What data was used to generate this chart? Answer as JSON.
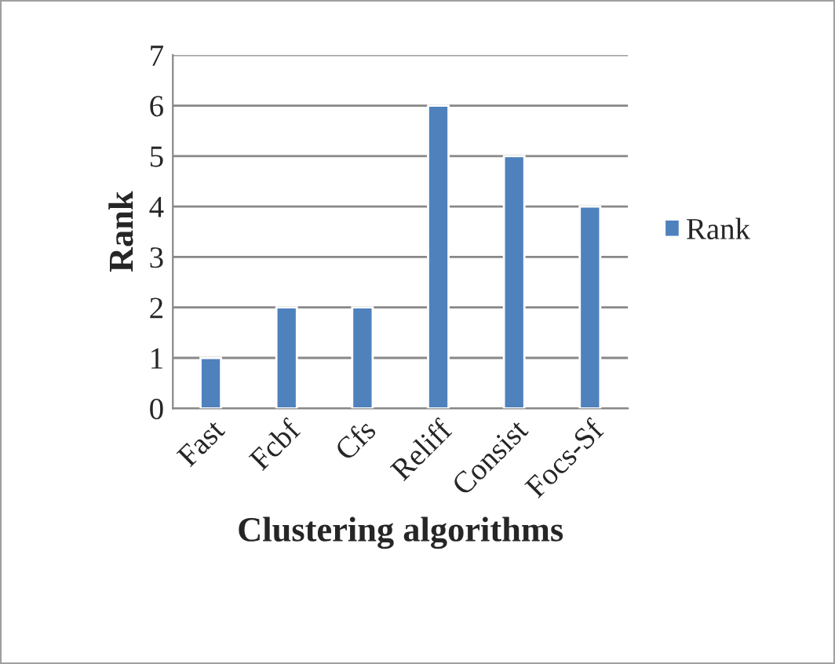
{
  "chart_data": {
    "type": "bar",
    "xlabel": "Clustering algorithms",
    "ylabel": "Rank",
    "categories": [
      "Fast",
      "Fcbf",
      "Cfs",
      "Reliff",
      "Consist",
      "Focs-Sf"
    ],
    "series": [
      {
        "name": "Rank",
        "color": "#4f81bd",
        "values": [
          1,
          2,
          2,
          6,
          5,
          4
        ]
      }
    ],
    "ylim": [
      0,
      7
    ],
    "yticks": [
      0,
      1,
      2,
      3,
      4,
      5,
      6,
      7
    ],
    "grid": "y",
    "legend": "right"
  }
}
